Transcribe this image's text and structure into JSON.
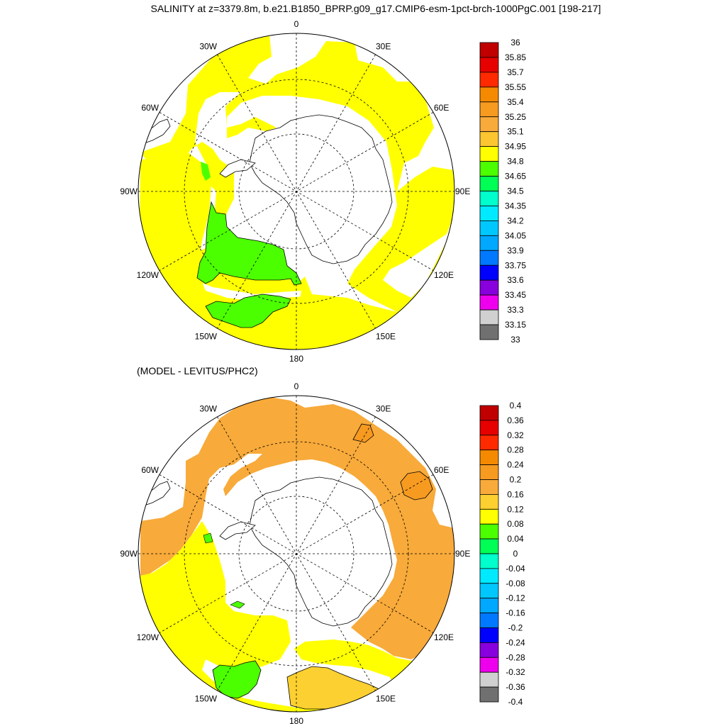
{
  "title": "SALINITY at z=3379.8m, b.e21.B1850_BPRP.g09_g17.CMIP6-esm-1pct-brch-1000PgC.001 [198-217]",
  "subtitle": "(MODEL - LEVITUS/PHC2)",
  "lon_labels": [
    "0",
    "30E",
    "60E",
    "90E",
    "120E",
    "150E",
    "180",
    "150W",
    "120W",
    "90W",
    "60W",
    "30W"
  ],
  "top_colorbar": {
    "labels": [
      "36",
      "35.85",
      "35.7",
      "35.55",
      "35.4",
      "35.25",
      "35.1",
      "34.95",
      "34.8",
      "34.65",
      "34.5",
      "34.35",
      "34.2",
      "34.05",
      "33.9",
      "33.75",
      "33.6",
      "33.45",
      "33.3",
      "33.15",
      "33"
    ],
    "colors": [
      "#c00000",
      "#e60000",
      "#ff2a00",
      "#f58a00",
      "#f79a20",
      "#f8aa3a",
      "#fcc630",
      "#ffff00",
      "#4cff00",
      "#00ff55",
      "#00ffcc",
      "#00eaff",
      "#00c8ff",
      "#00a8ff",
      "#0078ff",
      "#0000ff",
      "#8800dd",
      "#ee00ee",
      "#d0d0d0",
      "#707070"
    ]
  },
  "bottom_colorbar": {
    "labels": [
      "0.4",
      "0.36",
      "0.32",
      "0.28",
      "0.24",
      "0.2",
      "0.16",
      "0.12",
      "0.08",
      "0.04",
      "0",
      "-0.04",
      "-0.08",
      "-0.12",
      "-0.16",
      "-0.2",
      "-0.24",
      "-0.28",
      "-0.32",
      "-0.36",
      "-0.4"
    ],
    "colors": [
      "#c00000",
      "#e60000",
      "#ff2a00",
      "#f58a00",
      "#f79a20",
      "#f8aa3a",
      "#fcd030",
      "#ffff00",
      "#4cff00",
      "#00ff55",
      "#00ffcc",
      "#00eaff",
      "#00c8ff",
      "#00a8ff",
      "#0078ff",
      "#0000ff",
      "#8800dd",
      "#ee00ee",
      "#d0d0d0",
      "#707070"
    ]
  }
}
